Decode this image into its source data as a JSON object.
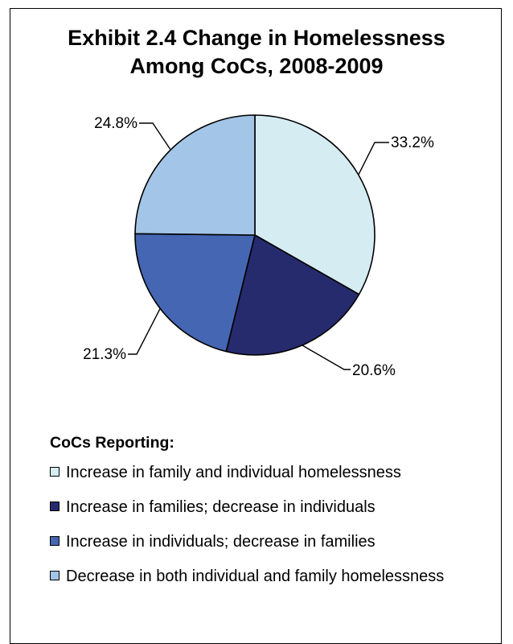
{
  "chart_data": {
    "type": "pie",
    "title": "Exhibit 2.4 Change in Homelessness Among CoCs, 2008-2009",
    "title_lines": [
      "Exhibit 2.4 Change in Homelessness",
      "Among CoCs, 2008-2009"
    ],
    "slices": [
      {
        "label": "Increase in family and individual homelessness",
        "value": 33.2,
        "display": "33.2%",
        "color": "#D4ECF2"
      },
      {
        "label": "Increase in families; decrease in individuals",
        "value": 20.6,
        "display": "20.6%",
        "color": "#262B6E"
      },
      {
        "label": "Increase in individuals; decrease in families",
        "value": 21.3,
        "display": "21.3%",
        "color": "#4566B2"
      },
      {
        "label": "Decrease in both individual and family homelessness",
        "value": 24.8,
        "display": "24.8%",
        "color": "#A3C5E7"
      }
    ],
    "start_angle": "12 o'clock",
    "direction": "clockwise",
    "legend_title": "CoCs Reporting:",
    "legend_position": "bottom"
  },
  "legend": {
    "heading": "CoCs Reporting:",
    "items": [
      "Increase in family and individual homelessness",
      "Increase in families; decrease in individuals",
      "Increase in individuals; decrease in families",
      "Decrease in both individual and family homelessness"
    ]
  }
}
